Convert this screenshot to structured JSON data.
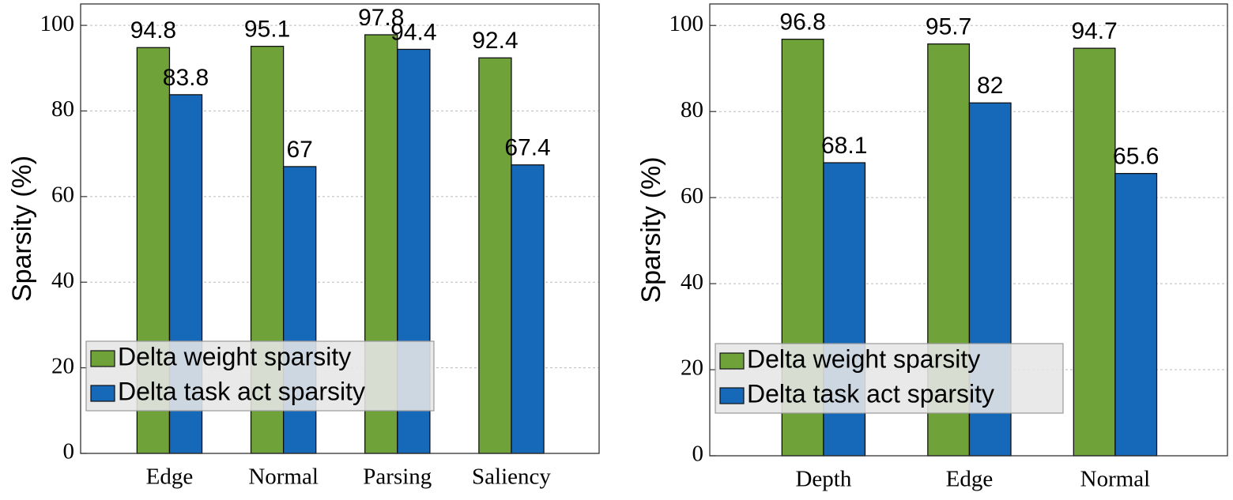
{
  "chart_data": [
    {
      "type": "bar",
      "ylabel": "Sparsity (%)",
      "categories": [
        "Edge",
        "Normal",
        "Parsing",
        "Saliency"
      ],
      "series": [
        {
          "name": "Delta weight sparsity",
          "color": "#6fa33a",
          "values": [
            94.8,
            95.1,
            97.8,
            92.4
          ]
        },
        {
          "name": "Delta task act sparsity",
          "color": "#1668b8",
          "values": [
            83.8,
            67,
            94.4,
            67.4
          ]
        }
      ],
      "ylim": [
        0,
        105
      ],
      "yticks": [
        0,
        20,
        40,
        60,
        80,
        100
      ],
      "grid": true,
      "legend": "lower left"
    },
    {
      "type": "bar",
      "ylabel": "Sparsity (%)",
      "categories": [
        "Depth",
        "Edge",
        "Normal"
      ],
      "series": [
        {
          "name": "Delta weight sparsity",
          "color": "#6fa33a",
          "values": [
            96.8,
            95.7,
            94.7
          ]
        },
        {
          "name": "Delta task act sparsity",
          "color": "#1668b8",
          "values": [
            68.1,
            82,
            65.6
          ]
        }
      ],
      "ylim": [
        0,
        105
      ],
      "yticks": [
        0,
        20,
        40,
        60,
        80,
        100
      ],
      "grid": true,
      "legend": "lower left"
    }
  ]
}
